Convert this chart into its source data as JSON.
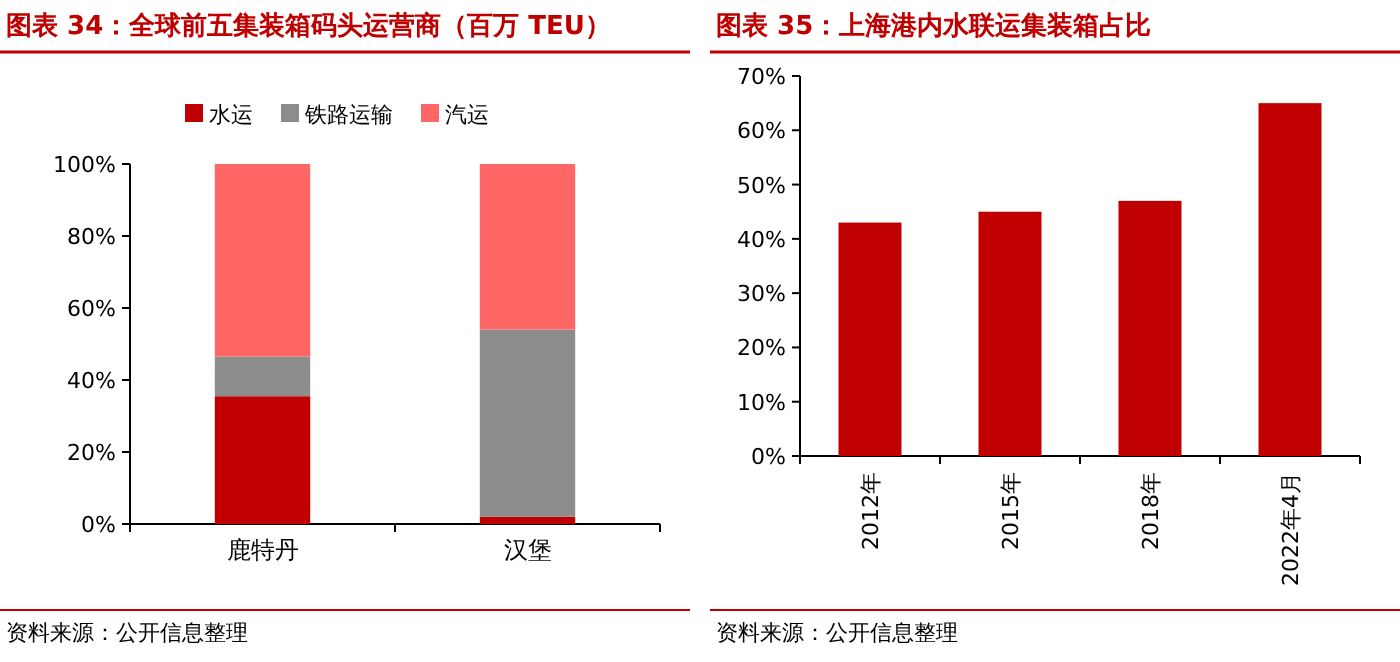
{
  "chart_data": [
    {
      "type": "bar",
      "title": "图表 34：全球前五集装箱码头运营商（百万 TEU）",
      "categories": [
        "鹿特丹",
        "汉堡"
      ],
      "stacked": true,
      "series": [
        {
          "name": "水运",
          "color": "#c00000",
          "values": [
            35.5,
            2
          ]
        },
        {
          "name": "铁路运输",
          "color": "#8c8c8c",
          "values": [
            11,
            52
          ]
        },
        {
          "name": "汽运",
          "color": "#ff6666",
          "values": [
            53.5,
            46
          ]
        }
      ],
      "ylim": [
        0,
        100
      ],
      "yticks": [
        {
          "value": 0,
          "label": "0%"
        },
        {
          "value": 20,
          "label": "20%"
        },
        {
          "value": 40,
          "label": "40%"
        },
        {
          "value": 60,
          "label": "60%"
        },
        {
          "value": 80,
          "label": "80%"
        },
        {
          "value": 100,
          "label": "100%"
        }
      ],
      "legend": "top",
      "grid": false,
      "annotations": [
        "资料来源：公开信息整理"
      ]
    },
    {
      "type": "bar",
      "title": "图表 35：上海港内水联运集装箱占比",
      "categories": [
        "2012年",
        "2015年",
        "2018年",
        "2022年4月"
      ],
      "series": [
        {
          "color": "#c00000",
          "values": [
            43,
            45,
            47,
            65
          ]
        }
      ],
      "ylim": [
        0,
        70
      ],
      "yticks": [
        {
          "value": 0,
          "label": "0%"
        },
        {
          "value": 10,
          "label": "10%"
        },
        {
          "value": 20,
          "label": "20%"
        },
        {
          "value": 30,
          "label": "30%"
        },
        {
          "value": 40,
          "label": "40%"
        },
        {
          "value": 50,
          "label": "50%"
        },
        {
          "value": 60,
          "label": "60%"
        },
        {
          "value": 70,
          "label": "70%"
        }
      ],
      "grid": false,
      "annotations": [
        "资料来源：公开信息整理"
      ]
    }
  ]
}
